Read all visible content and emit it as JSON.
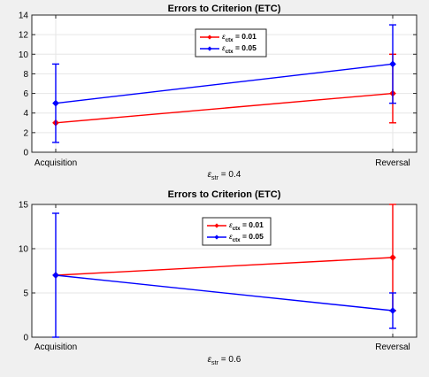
{
  "chart_data": [
    {
      "type": "line",
      "title": "Errors to Criterion (ETC)",
      "categories": [
        "Acquisition",
        "Reversal"
      ],
      "ylim": [
        0,
        14
      ],
      "yticks": [
        0,
        2,
        4,
        6,
        8,
        10,
        12,
        14
      ],
      "xlabel": {
        "symbol": "ε",
        "sub": "str",
        "suffix": " = 0.4"
      },
      "legend_position": "top-center",
      "grid": true,
      "series": [
        {
          "label": {
            "symbol": "ε",
            "sub": "ctx",
            "suffix": " = 0.01"
          },
          "color": "#ff0000",
          "values": [
            3,
            6
          ],
          "err_low": [
            null,
            3
          ],
          "err_high": [
            null,
            10
          ]
        },
        {
          "label": {
            "symbol": "ε",
            "sub": "ctx",
            "suffix": " = 0.05"
          },
          "color": "#0000ff",
          "values": [
            5,
            9
          ],
          "err_low": [
            1,
            5
          ],
          "err_high": [
            9,
            13
          ]
        }
      ]
    },
    {
      "type": "line",
      "title": "Errors to Criterion (ETC)",
      "categories": [
        "Acquisition",
        "Reversal"
      ],
      "ylim": [
        0,
        15
      ],
      "yticks": [
        0,
        5,
        10,
        15
      ],
      "xlabel": {
        "symbol": "ε",
        "sub": "str",
        "suffix": " = 0.6"
      },
      "legend_position": "top-center",
      "grid": true,
      "series": [
        {
          "label": {
            "symbol": "ε",
            "sub": "ctx",
            "suffix": " = 0.01"
          },
          "color": "#ff0000",
          "values": [
            7,
            9
          ],
          "err_low": [
            null,
            3
          ],
          "err_high": [
            null,
            15
          ]
        },
        {
          "label": {
            "symbol": "ε",
            "sub": "ctx",
            "suffix": " = 0.05"
          },
          "color": "#0000ff",
          "values": [
            7,
            3
          ],
          "err_low": [
            0,
            1
          ],
          "err_high": [
            14,
            5
          ]
        }
      ]
    }
  ]
}
